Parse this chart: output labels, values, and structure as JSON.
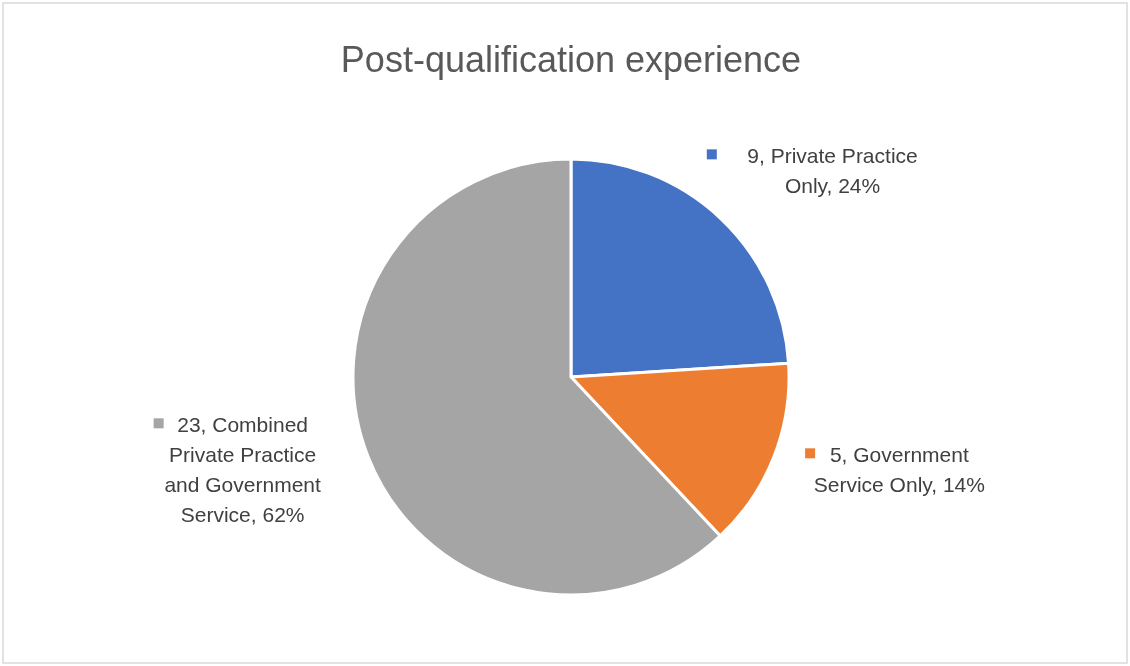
{
  "chart_data": {
    "type": "pie",
    "title": "Post-qualification experience",
    "categories": [
      "9, Private Practice Only, 24%",
      "5, Government Service Only, 14%",
      "23, Combined Private Practice and Government Service, 62%"
    ],
    "values": [
      24,
      14,
      62
    ],
    "colors": [
      "#4472c4",
      "#ed7d31",
      "#a5a5a5"
    ],
    "legend": "right"
  }
}
